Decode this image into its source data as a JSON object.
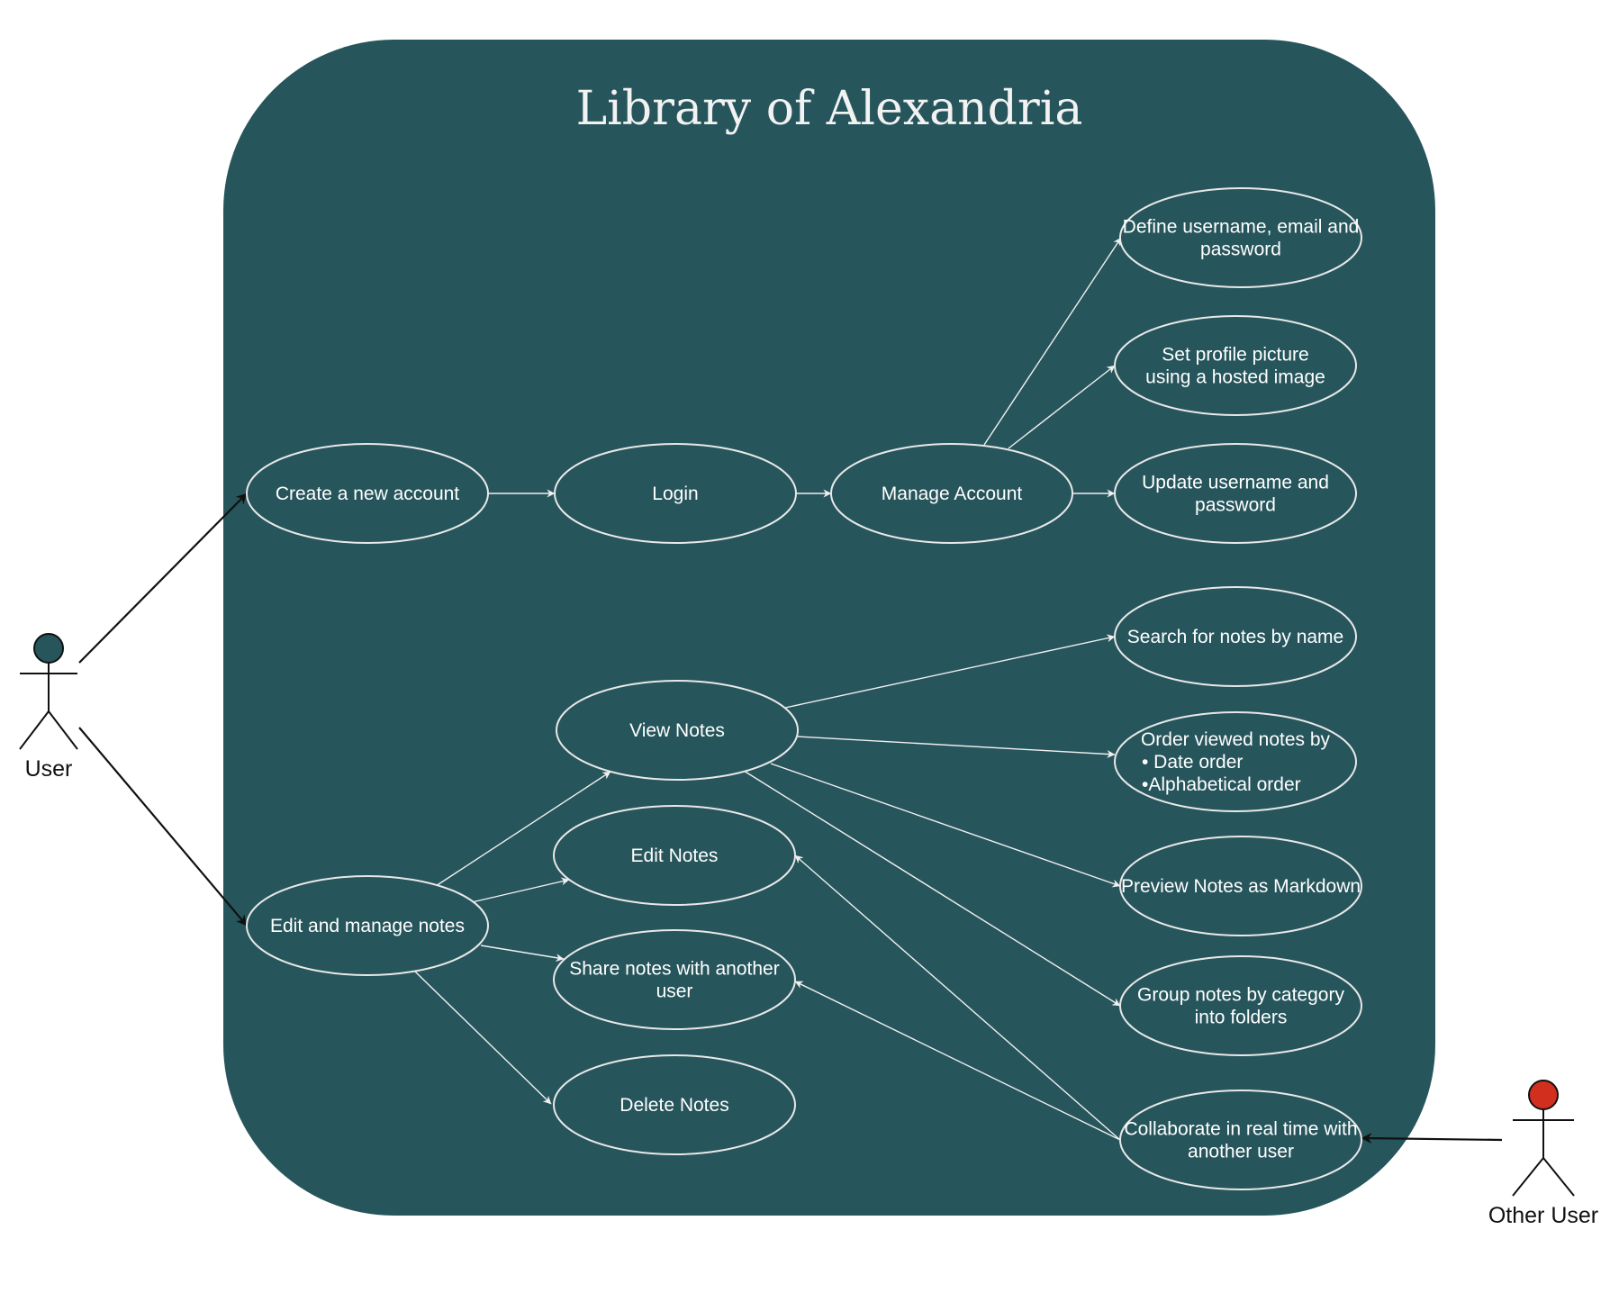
{
  "title": "Library of Alexandria",
  "colors": {
    "system_background": "#26555c",
    "ellipse_stroke": "#e8e8e8",
    "user_head": "#26555c",
    "other_user_head": "#d32f1f"
  },
  "actors": {
    "user": {
      "label": "User"
    },
    "other_user": {
      "label": "Other User"
    }
  },
  "use_cases": {
    "create_account": [
      "Create a new account"
    ],
    "login": [
      "Login"
    ],
    "manage_account": [
      "Manage Account"
    ],
    "define_credentials": [
      "Define username, email and",
      "password"
    ],
    "set_profile_picture": [
      "Set profile picture",
      "using a hosted image"
    ],
    "update_credentials": [
      "Update username and",
      "password"
    ],
    "search_notes": [
      "Search for notes by name"
    ],
    "view_notes": [
      "View Notes"
    ],
    "order_notes": [
      "Order viewed notes by",
      "• Date order",
      "•Alphabetical order"
    ],
    "edit_notes": [
      "Edit Notes"
    ],
    "preview_markdown": [
      "Preview Notes as Markdown"
    ],
    "edit_manage_notes": [
      "Edit and manage notes"
    ],
    "share_notes": [
      "Share notes with another",
      "user"
    ],
    "group_notes": [
      "Group notes by category",
      "into folders"
    ],
    "delete_notes": [
      "Delete Notes"
    ],
    "collaborate": [
      "Collaborate in real time with",
      "another user"
    ]
  }
}
